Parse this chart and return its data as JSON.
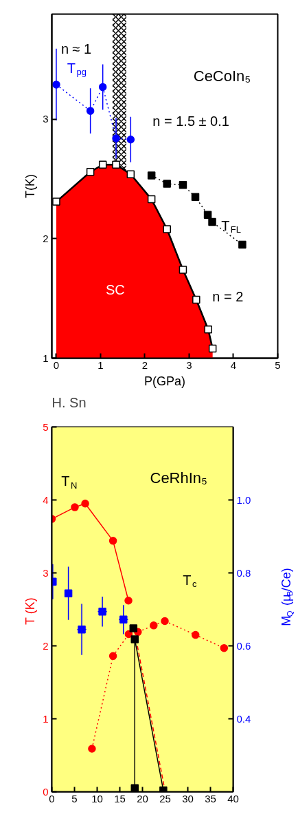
{
  "chart_data": [
    {
      "type": "line",
      "title": "CeCoIn₅",
      "xlabel": "P(GPa)",
      "ylabel": "T(K)",
      "xlim": [
        -0.1,
        5
      ],
      "xticks": [
        0,
        1,
        2,
        3,
        4,
        5
      ],
      "ylim": [
        1,
        3.88
      ],
      "yticks": [
        1,
        2,
        3
      ],
      "grid": false,
      "bands": [
        {
          "axis": "x",
          "from": 1.27,
          "to": 1.58
        }
      ],
      "series": [
        {
          "type": "area",
          "color": "#ff0000",
          "marker": "square",
          "x": [
            0,
            0.77,
            1.05,
            1.35,
            1.68,
            2.15,
            2.5,
            2.86,
            3.16,
            3.43,
            3.53
          ],
          "values": [
            2.31,
            2.56,
            2.62,
            2.62,
            2.54,
            2.33,
            2.08,
            1.74,
            1.49,
            1.24,
            1.08
          ]
        },
        {
          "name": "T$_{FL}$",
          "color": "#000000",
          "marker": "square",
          "line_style": "dotted",
          "x": [
            2.15,
            2.5,
            2.86,
            3.14,
            3.42,
            3.52,
            4.2
          ],
          "values": [
            2.53,
            2.46,
            2.45,
            2.35,
            2.2,
            2.14,
            1.95
          ]
        },
        {
          "name": "T$_{pg}$",
          "color": "#0000ff",
          "marker": "circle",
          "line_style": "dotted",
          "x": [
            0,
            0.77,
            1.05,
            1.35,
            1.68
          ],
          "values": [
            3.29,
            3.07,
            3.27,
            2.84,
            2.83
          ],
          "errors": [
            0.3,
            0.19,
            0.19,
            0.17,
            0.19
          ]
        }
      ],
      "annotations": [
        "n = 1.5 ± 0.1",
        "n = 2",
        "n ≈ 1",
        "SC",
        "H. Sn"
      ]
    },
    {
      "type": "line",
      "title": "CeRhIn₅",
      "ylabel": "T  (K)",
      "y2label": "M$_{Q}$ (μ$_{B}$/Ce)",
      "xlim": [
        0,
        40
      ],
      "xticks": [
        0,
        5,
        10,
        15,
        20,
        25,
        30,
        35,
        40
      ],
      "ylim": [
        0,
        5
      ],
      "yticks": [
        0,
        1,
        2,
        3,
        4,
        5
      ],
      "y2lim": [
        0.2,
        1.2
      ],
      "y2ticks": [
        0.4,
        0.6,
        0.8,
        {
          "value": 1,
          "label": "1.0"
        }
      ],
      "grid": false,
      "bands": [
        {
          "axis": "x",
          "from": 0,
          "to": 40,
          "color": "#ffff80"
        }
      ],
      "series": [
        {
          "name": "T$_{N}$",
          "color": "#ff0000",
          "marker": "circle",
          "line_style": "solid",
          "x": [
            0,
            5.07,
            7.36,
            13.5,
            16.9
          ],
          "values": [
            3.74,
            3.9,
            3.95,
            3.44,
            2.62
          ]
        },
        {
          "name": "T$_{c}$",
          "color": "#ff0000",
          "marker": "circle",
          "line_style": "dotted",
          "x": [
            8.85,
            13.5,
            16.96,
            18.99,
            22.47,
            24.93,
            31.7,
            38.0
          ],
          "values": [
            0.59,
            1.86,
            2.16,
            2.19,
            2.28,
            2.34,
            2.15,
            1.97
          ]
        },
        {
          "color": "#ff0000",
          "marker": "none",
          "line_style": "dashed",
          "x": [
            18.6,
            25.0
          ],
          "values": [
            2.09,
            0.0
          ]
        },
        {
          "color": "#000000",
          "marker": "square",
          "line_style": "solid",
          "x": [
            18.3,
            18.3,
            24.6
          ],
          "values": [
            0.05,
            2.09,
            0.02
          ]
        },
        {
          "type": "scatter",
          "color": "#000000",
          "marker": "square",
          "x": [
            18.0
          ],
          "values": [
            2.24
          ]
        },
        {
          "type": "scatter",
          "color": "#0000ff",
          "marker": "square",
          "axis": "y2",
          "x": [
            0.2,
            3.65,
            6.6,
            11.15,
            15.8
          ],
          "values": [
            0.776,
            0.744,
            0.645,
            0.694,
            0.672
          ],
          "errors": [
            0.048,
            0.073,
            0.07,
            0.041,
            0.04
          ],
          "xerrors": [
            null,
            null,
            1.0,
            1.0,
            1.0
          ]
        }
      ]
    }
  ]
}
